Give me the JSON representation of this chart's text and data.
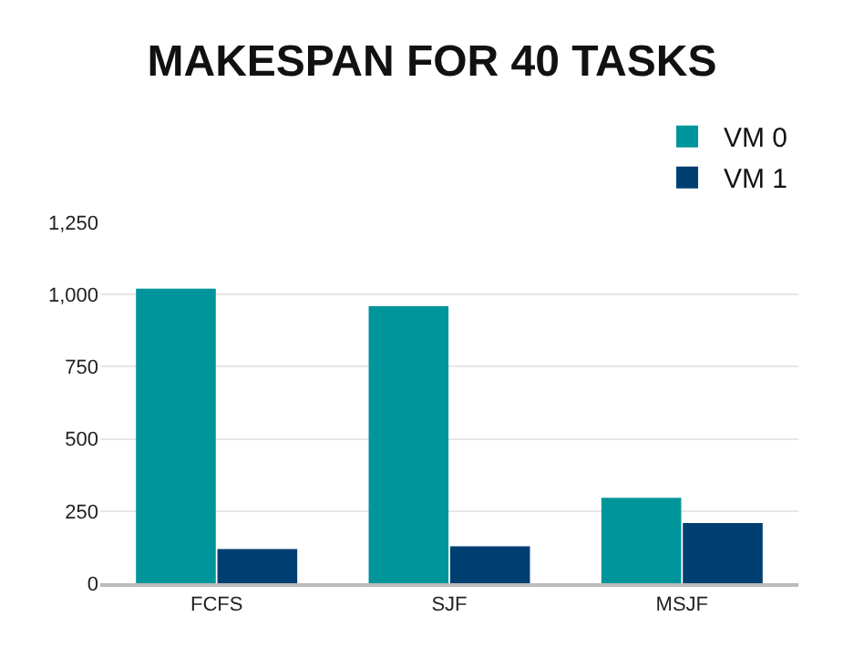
{
  "chart_data": {
    "type": "bar",
    "title": "MAKESPAN FOR 40 TASKS",
    "categories": [
      "FCFS",
      "SJF",
      "MSJF"
    ],
    "series": [
      {
        "name": "VM 0",
        "color": "#00959a",
        "values": [
          1020,
          960,
          296
        ]
      },
      {
        "name": "VM 1",
        "color": "#003f72",
        "values": [
          118,
          128,
          208
        ]
      }
    ],
    "ylim": [
      0,
      1250
    ],
    "yticks": [
      0,
      {
        "value": 250,
        "label": "250"
      },
      {
        "value": 500,
        "label": "500"
      },
      {
        "value": 750,
        "label": "750"
      },
      {
        "value": 1000,
        "label": "1,000"
      },
      {
        "value": 1250,
        "label": "1,250"
      }
    ],
    "grid": "y",
    "legend": "top right"
  }
}
